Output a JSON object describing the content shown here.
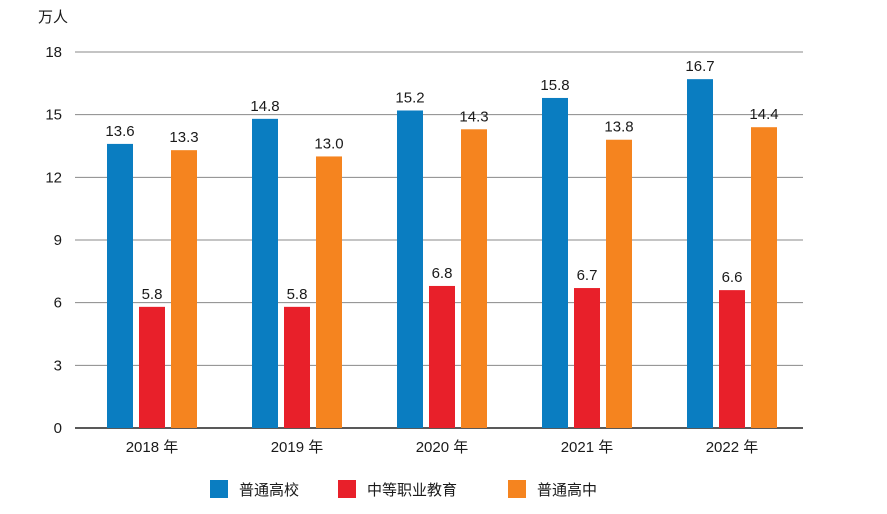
{
  "chart_data": {
    "type": "bar",
    "title": "",
    "ylabel": "万人",
    "xlabel": "",
    "ylim": [
      0,
      18
    ],
    "yticks": [
      0,
      3,
      6,
      9,
      12,
      15,
      18
    ],
    "grid": true,
    "legend_position": "bottom",
    "categories": [
      "2018 年",
      "2019 年",
      "2020 年",
      "2021 年",
      "2022 年"
    ],
    "series": [
      {
        "name": "普通高校",
        "color": "#0A7DC1",
        "values": [
          13.6,
          14.8,
          15.2,
          15.8,
          16.7
        ]
      },
      {
        "name": "中等职业教育",
        "color": "#E8202A",
        "values": [
          5.8,
          5.8,
          6.8,
          6.7,
          6.6
        ]
      },
      {
        "name": "普通高中",
        "color": "#F5841F",
        "values": [
          13.3,
          13.0,
          14.3,
          13.8,
          14.4
        ]
      }
    ]
  }
}
